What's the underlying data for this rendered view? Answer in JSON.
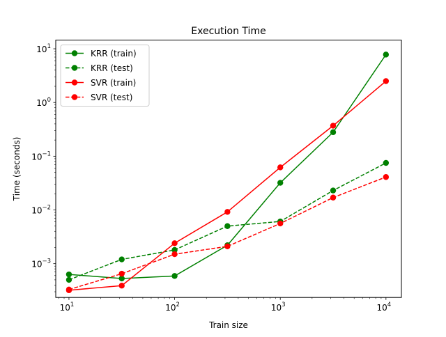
{
  "chart_data": {
    "type": "line",
    "title": "Execution Time",
    "xlabel": "Train size",
    "ylabel": "Time (seconds)",
    "xscale": "log",
    "yscale": "log",
    "xlim": [
      7.5,
      14000
    ],
    "ylim": [
      0.000235,
      14.5
    ],
    "xticks": [
      {
        "value": 10,
        "base": "10",
        "exp": "1"
      },
      {
        "value": 100,
        "base": "10",
        "exp": "2"
      },
      {
        "value": 1000,
        "base": "10",
        "exp": "3"
      },
      {
        "value": 10000,
        "base": "10",
        "exp": "4"
      }
    ],
    "yticks": [
      {
        "value": 0.001,
        "base": "10",
        "exp": "−3"
      },
      {
        "value": 0.01,
        "base": "10",
        "exp": "−2"
      },
      {
        "value": 0.1,
        "base": "10",
        "exp": "−1"
      },
      {
        "value": 1,
        "base": "10",
        "exp": "0"
      },
      {
        "value": 10,
        "base": "10",
        "exp": "1"
      }
    ],
    "grid": false,
    "legend_position": "top-left",
    "x": [
      10,
      31.6,
      100,
      316,
      1000,
      3162,
      10000
    ],
    "series": [
      {
        "name": "KRR (train)",
        "color": "#008000",
        "linestyle": "solid",
        "marker": "circle",
        "values": [
          0.00063,
          0.00053,
          0.00059,
          0.0022,
          0.032,
          0.28,
          7.8
        ]
      },
      {
        "name": "KRR (test)",
        "color": "#008000",
        "linestyle": "dashed",
        "marker": "circle",
        "values": [
          0.0005,
          0.0012,
          0.0018,
          0.005,
          0.0061,
          0.023,
          0.075
        ]
      },
      {
        "name": "SVR (train)",
        "color": "#ff0000",
        "linestyle": "solid",
        "marker": "circle",
        "values": [
          0.00032,
          0.00039,
          0.0024,
          0.0092,
          0.062,
          0.37,
          2.5
        ]
      },
      {
        "name": "SVR (test)",
        "color": "#ff0000",
        "linestyle": "dashed",
        "marker": "circle",
        "values": [
          0.00033,
          0.00065,
          0.0015,
          0.0021,
          0.0056,
          0.017,
          0.041
        ]
      }
    ]
  }
}
